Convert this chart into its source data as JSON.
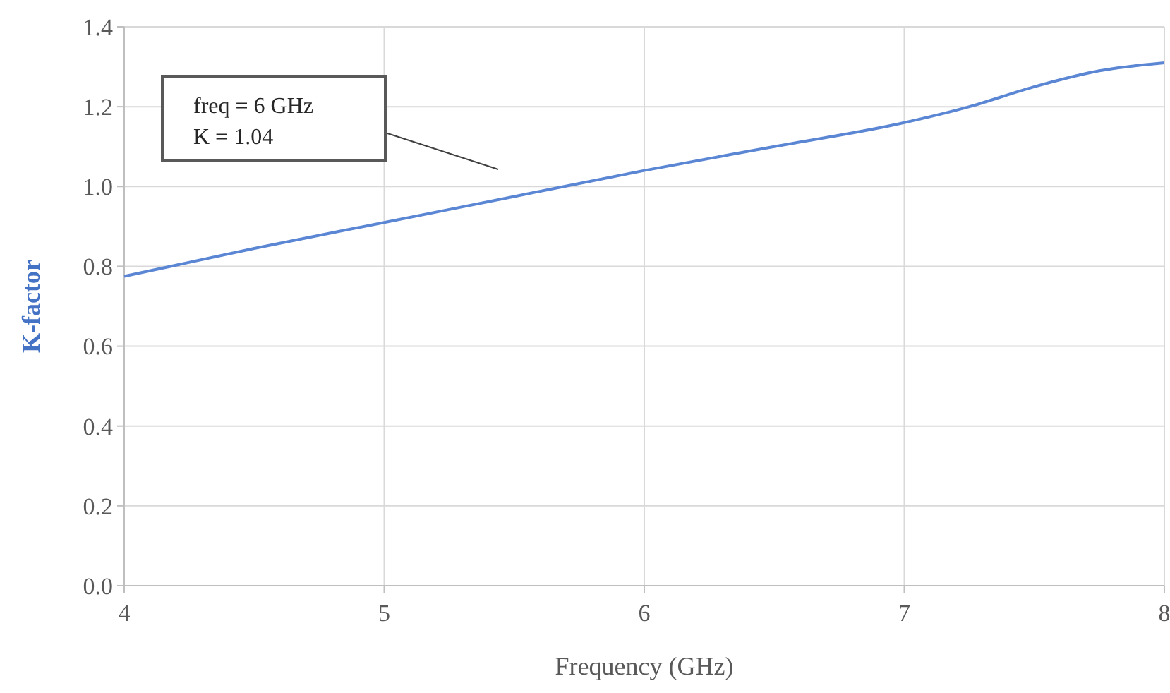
{
  "chart_data": {
    "type": "line",
    "xlabel": "Frequency (GHz)",
    "ylabel": "K-factor",
    "x": [
      4,
      4.5,
      5,
      5.5,
      6,
      6.5,
      7,
      7.25,
      7.5,
      7.75,
      8
    ],
    "series": [
      {
        "color": "#5b86d4",
        "values": [
          0.775,
          0.845,
          0.91,
          0.975,
          1.04,
          1.1,
          1.16,
          1.2,
          1.25,
          1.29,
          1.31
        ]
      }
    ],
    "xlim": [
      4,
      8
    ],
    "xticks": [
      4,
      5,
      6,
      7,
      8
    ],
    "ylim": [
      0,
      1.4
    ],
    "yticks": [
      {
        "value": 0,
        "label": "0.0"
      },
      {
        "value": 0.2,
        "label": "0.2"
      },
      {
        "value": 0.4,
        "label": "0.4"
      },
      {
        "value": 0.6,
        "label": "0.6"
      },
      {
        "value": 0.8,
        "label": "0.8"
      },
      {
        "value": 1,
        "label": "1.0"
      },
      {
        "value": 1.2,
        "label": "1.2"
      },
      {
        "value": 1.4,
        "label": "1.4"
      }
    ],
    "grid": true,
    "marker": "none",
    "line_style": "solid",
    "annotations": [
      "freq = 6 GHz\nK = 1.04"
    ]
  }
}
